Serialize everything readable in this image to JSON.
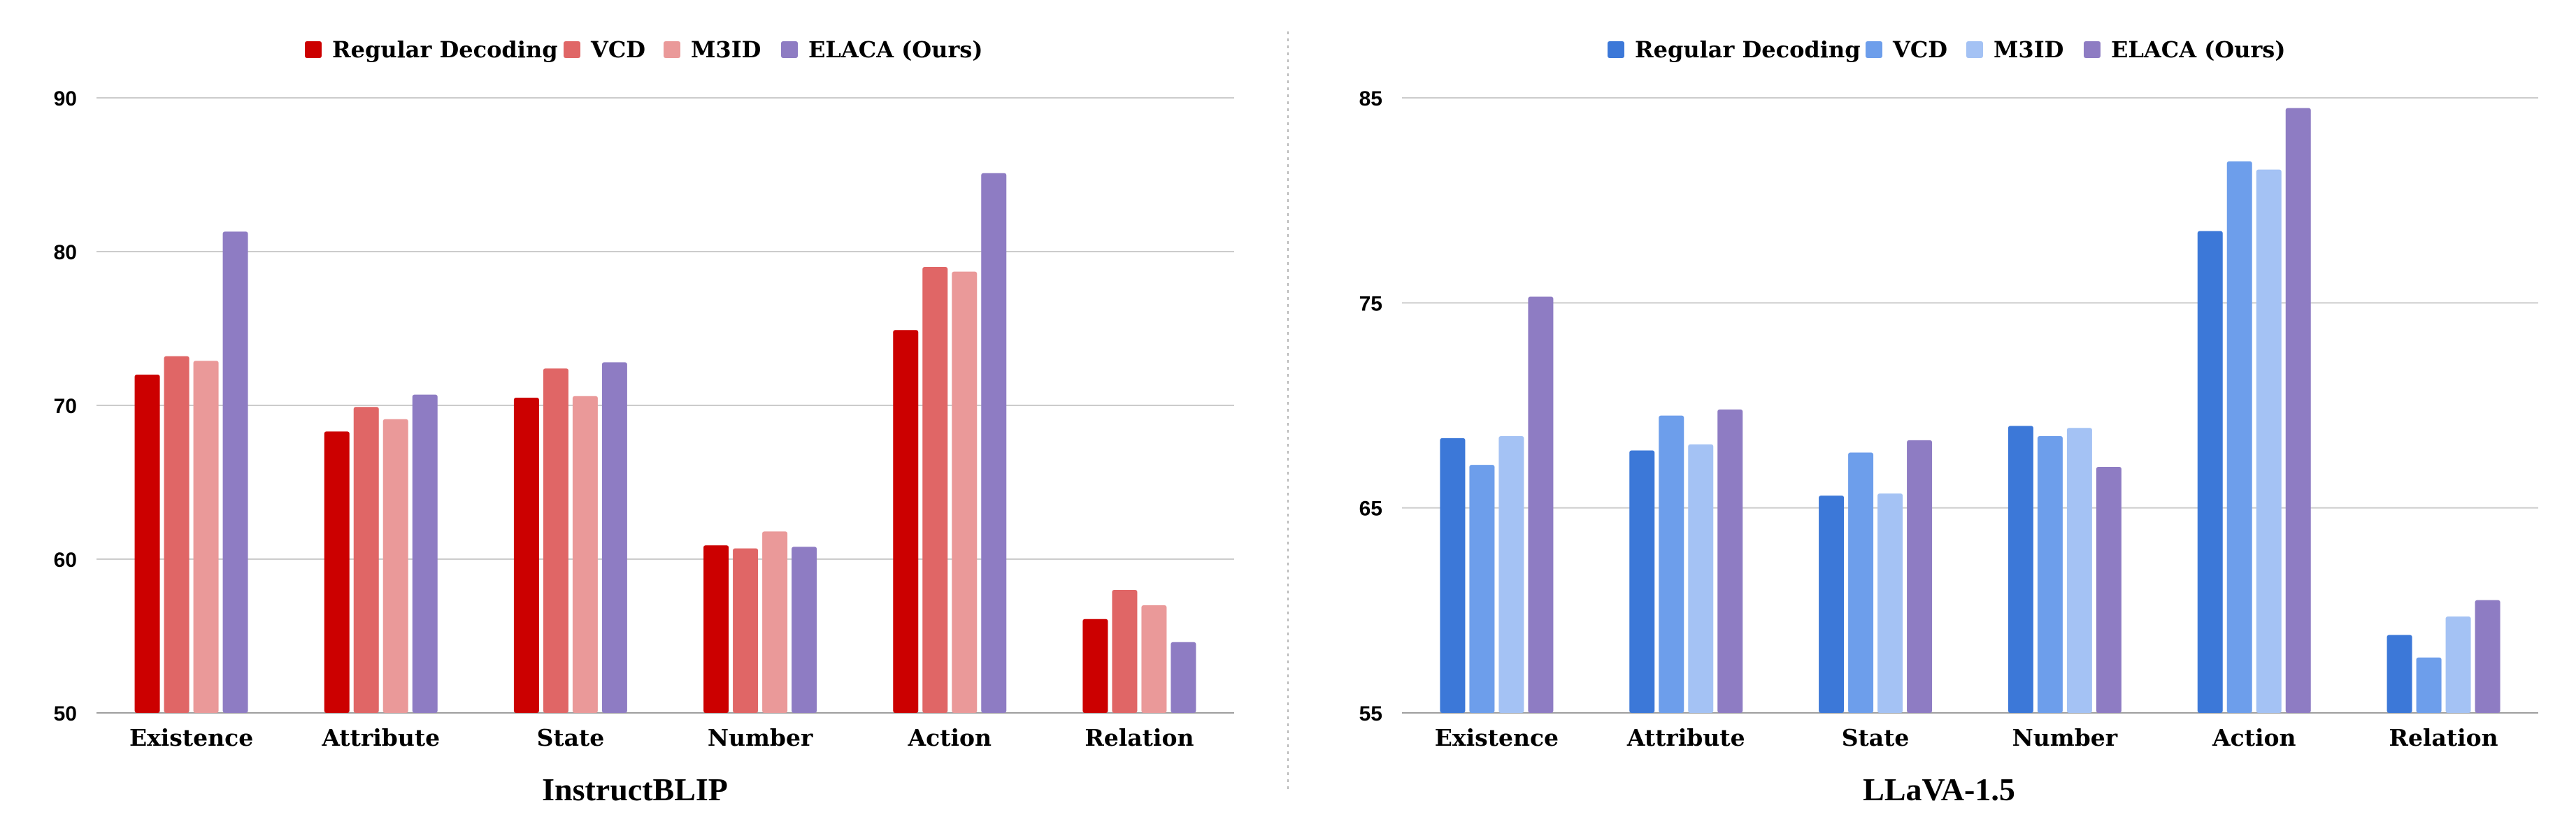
{
  "chart_data": [
    {
      "type": "bar",
      "title": "InstructBLIP",
      "categories": [
        "Existence",
        "Attribute",
        "State",
        "Number",
        "Action",
        "Relation"
      ],
      "ylim": [
        50,
        90
      ],
      "yticks": [
        50,
        60,
        70,
        80,
        90
      ],
      "grid": true,
      "legend_position": "top-center",
      "series": [
        {
          "name": "Regular Decoding",
          "color": "#cc0000",
          "values": [
            72.0,
            68.3,
            70.5,
            60.9,
            74.9,
            56.1
          ]
        },
        {
          "name": "VCD",
          "color": "#e06666",
          "values": [
            73.2,
            69.9,
            72.4,
            60.7,
            79.0,
            58.0
          ]
        },
        {
          "name": "M3ID",
          "color": "#ea9999",
          "values": [
            72.9,
            69.1,
            70.6,
            61.8,
            78.7,
            57.0
          ]
        },
        {
          "name": "ELACA (Ours)",
          "color": "#8e7cc3",
          "values": [
            81.3,
            70.7,
            72.8,
            60.8,
            85.1,
            54.6
          ]
        }
      ]
    },
    {
      "type": "bar",
      "title": "LLaVA-1.5",
      "categories": [
        "Existence",
        "Attribute",
        "State",
        "Number",
        "Action",
        "Relation"
      ],
      "ylim": [
        55,
        85
      ],
      "yticks": [
        55,
        65,
        75,
        85
      ],
      "grid": true,
      "legend_position": "top-center",
      "series": [
        {
          "name": "Regular Decoding",
          "color": "#3c78d8",
          "values": [
            68.4,
            67.8,
            65.6,
            69.0,
            78.5,
            58.8
          ]
        },
        {
          "name": "VCD",
          "color": "#6d9eeb",
          "values": [
            67.1,
            69.5,
            67.7,
            68.5,
            81.9,
            57.7
          ]
        },
        {
          "name": "M3ID",
          "color": "#a4c2f4",
          "values": [
            68.5,
            68.1,
            65.7,
            68.9,
            81.5,
            59.7
          ]
        },
        {
          "name": "ELACA (Ours)",
          "color": "#8e7cc3",
          "values": [
            75.3,
            69.8,
            68.3,
            67.0,
            84.5,
            60.5
          ]
        }
      ]
    }
  ]
}
